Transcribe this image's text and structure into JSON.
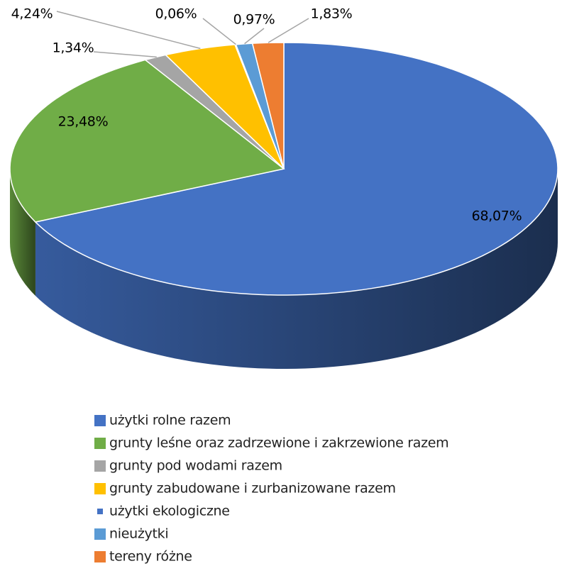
{
  "chart_data": {
    "type": "pie",
    "categories": [
      "użytki rolne razem",
      "grunty leśne oraz zadrzewione i zakrzewione razem",
      "grunty pod wodami razem",
      "grunty zabudowane i zurbanizowane razem",
      "użytki ekologiczne",
      "nieużytki",
      "tereny różne"
    ],
    "values": [
      68.07,
      23.48,
      1.34,
      4.24,
      0.06,
      0.97,
      1.83
    ],
    "value_labels": [
      "68,07%",
      "23,48%",
      "1,34%",
      "4,24%",
      "0,06%",
      "0,97%",
      "1,83%"
    ],
    "colors": [
      "#4472c4",
      "#70ad47",
      "#a5a5a5",
      "#ffc000",
      "#264478",
      "#5b9bd5",
      "#ed7d31"
    ],
    "legend": "bottom"
  }
}
